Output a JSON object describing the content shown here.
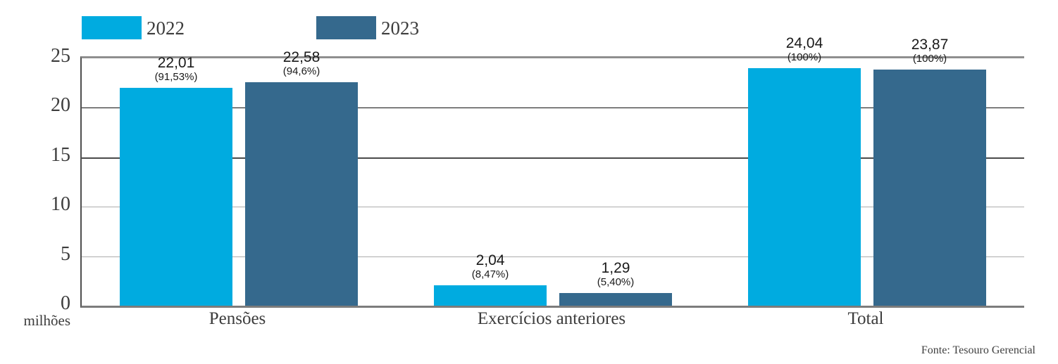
{
  "chart_data": {
    "type": "bar",
    "title": "",
    "categories": [
      "Pensões",
      "Exercícios anteriores",
      "Total"
    ],
    "series": [
      {
        "name": "2022",
        "color": "#00abe0",
        "values": [
          22.01,
          2.04,
          24.04
        ],
        "value_labels": [
          "22,01",
          "2,04",
          "24,04"
        ],
        "pct_labels": [
          "(91,53%)",
          "(8,47%)",
          "(100%)"
        ]
      },
      {
        "name": "2023",
        "color": "#35698d",
        "values": [
          22.58,
          1.29,
          23.87
        ],
        "value_labels": [
          "22,58",
          "1,29",
          "23,87"
        ],
        "pct_labels": [
          "(94,6%)",
          "(5,40%)",
          "(100%)"
        ]
      }
    ],
    "ylim": [
      0,
      25
    ],
    "yticks": [
      0,
      5,
      10,
      15,
      20,
      25
    ],
    "ytick_labels": [
      "0",
      "5",
      "10",
      "15",
      "20",
      "25"
    ],
    "unit_label": "milhões",
    "legend_position": "top-left",
    "grid": "horizontal"
  },
  "source": "Fonte: Tesouro Gerencial"
}
